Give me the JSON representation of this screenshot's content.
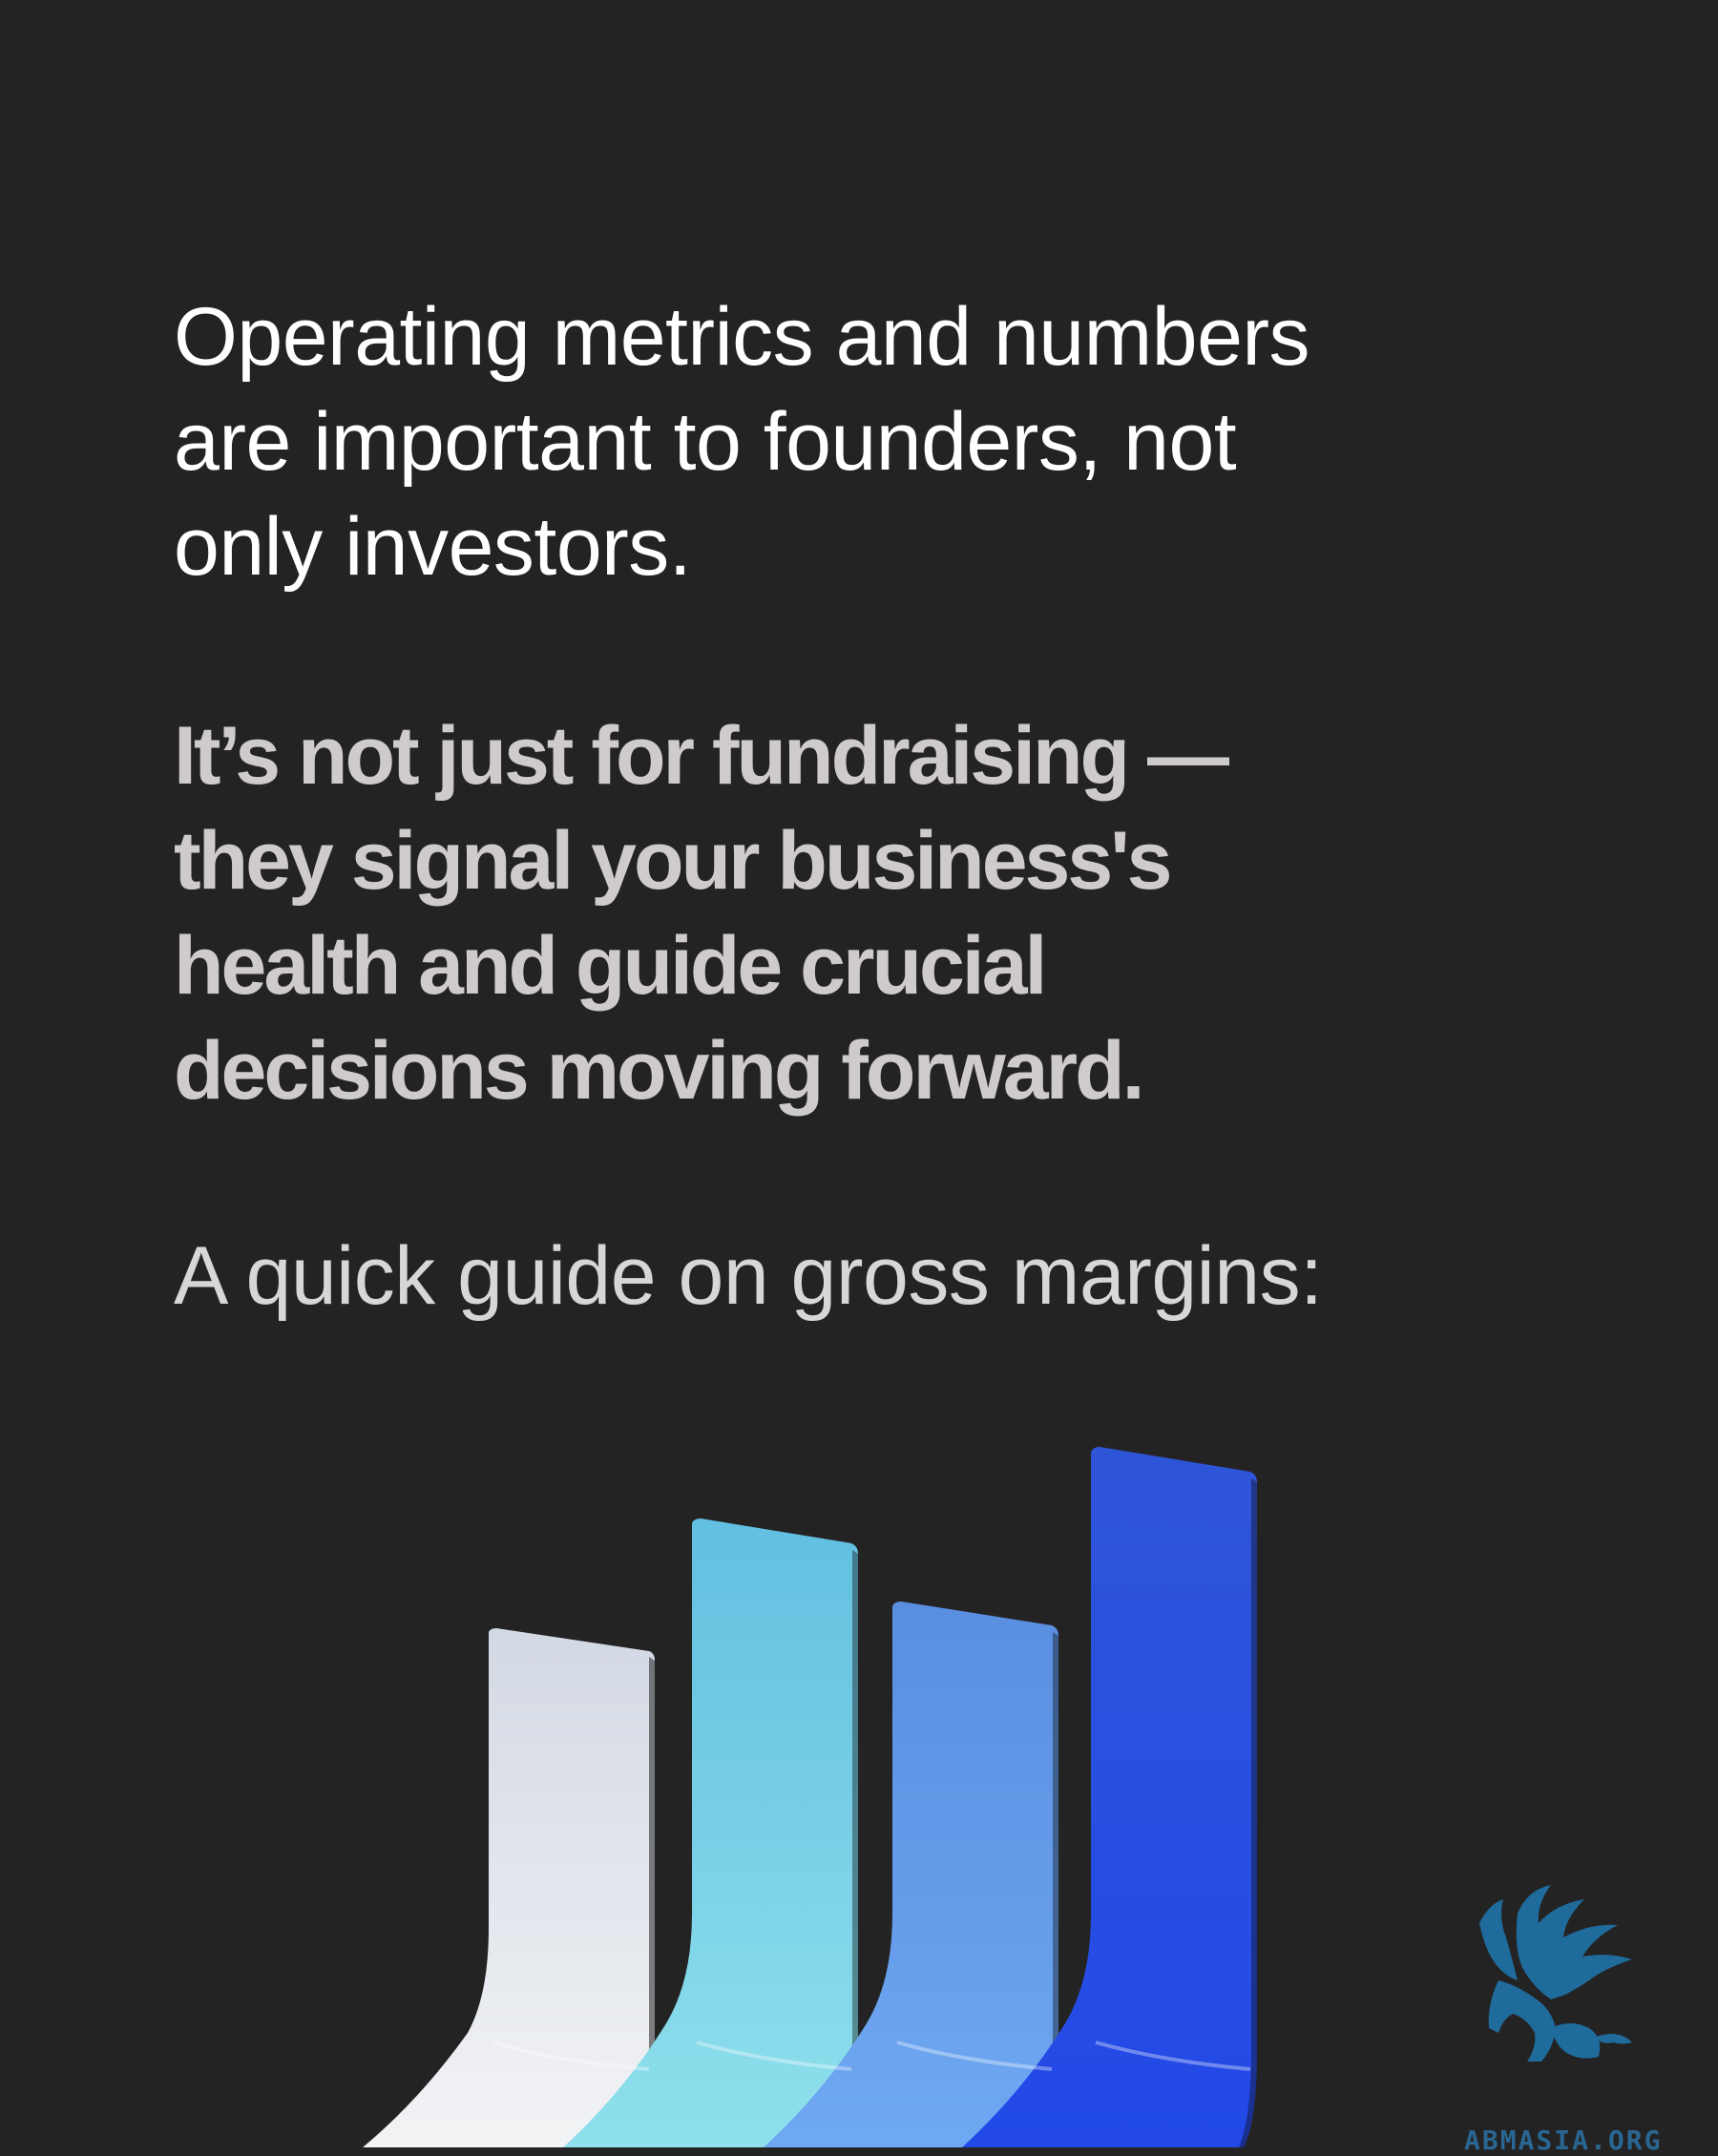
{
  "intro": {
    "lines": [
      "Operating metrics and numbers",
      "are important to founders, not",
      "only investors."
    ]
  },
  "emphasis": {
    "lines": [
      "It’s not just for fundraising —",
      "they signal your business's",
      "health and guide crucial",
      "decisions moving forward."
    ]
  },
  "guide": {
    "text": "A quick guide on gross margins:"
  },
  "illustration": {
    "icon": "rising-bars-illustration",
    "bar_colors": [
      "#e4e8ee",
      "#5ec7e0",
      "#5b8fe6",
      "#2f56e0"
    ]
  },
  "logo": {
    "icon": "griffin-logo-icon",
    "text": "ABMASIA.ORG",
    "color": "#1f6b9c"
  },
  "colors": {
    "background": "#232323",
    "intro_text": "#ffffff",
    "emphasis_text": "#cfcbcb"
  }
}
